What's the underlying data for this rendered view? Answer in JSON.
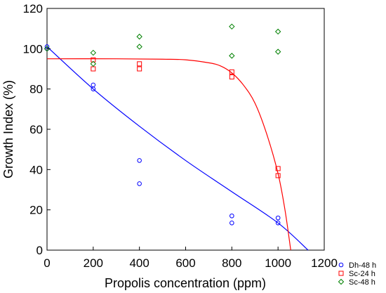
{
  "chart_data": {
    "type": "scatter",
    "xlabel": "Propolis concentration (ppm)",
    "ylabel": "Growth Index (%)",
    "xlim": [
      0,
      1200
    ],
    "ylim": [
      0,
      120
    ],
    "xticks": [
      0,
      200,
      400,
      600,
      800,
      1000,
      1200
    ],
    "yticks": [
      0,
      20,
      40,
      60,
      80,
      100,
      120
    ],
    "grid": false,
    "legend_position": "bottom-right",
    "series": [
      {
        "name": "Dh-48 h",
        "color": "#0000ff",
        "marker": "circle",
        "points": [
          [
            0,
            100
          ],
          [
            0,
            101
          ],
          [
            200,
            82
          ],
          [
            200,
            80
          ],
          [
            400,
            44.5
          ],
          [
            400,
            33
          ],
          [
            800,
            17
          ],
          [
            800,
            13.5
          ],
          [
            1000,
            16
          ],
          [
            1000,
            13.5
          ]
        ],
        "fit": [
          [
            0,
            101
          ],
          [
            200,
            80
          ],
          [
            400,
            61.5
          ],
          [
            600,
            44.5
          ],
          [
            800,
            29
          ],
          [
            1000,
            13.5
          ],
          [
            1130,
            0
          ]
        ]
      },
      {
        "name": "Sc-24 h",
        "color": "#ff0000",
        "marker": "square",
        "points": [
          [
            200,
            94.5
          ],
          [
            200,
            90
          ],
          [
            400,
            92.5
          ],
          [
            400,
            90
          ],
          [
            800,
            88.5
          ],
          [
            800,
            86
          ],
          [
            1000,
            40.5
          ],
          [
            1000,
            37
          ]
        ],
        "fit": [
          [
            0,
            95
          ],
          [
            300,
            95
          ],
          [
            500,
            94.8
          ],
          [
            600,
            94.5
          ],
          [
            700,
            93
          ],
          [
            750,
            91.5
          ],
          [
            800,
            88
          ],
          [
            850,
            82
          ],
          [
            900,
            73
          ],
          [
            950,
            58
          ],
          [
            1000,
            38
          ],
          [
            1030,
            20
          ],
          [
            1055,
            0
          ]
        ]
      },
      {
        "name": "Sc-48 h",
        "color": "#008000",
        "marker": "diamond",
        "points": [
          [
            0,
            100
          ],
          [
            200,
            98
          ],
          [
            200,
            92.5
          ],
          [
            400,
            106
          ],
          [
            400,
            101
          ],
          [
            800,
            111
          ],
          [
            800,
            96.5
          ],
          [
            1000,
            108.5
          ],
          [
            1000,
            98.5
          ]
        ]
      }
    ]
  }
}
